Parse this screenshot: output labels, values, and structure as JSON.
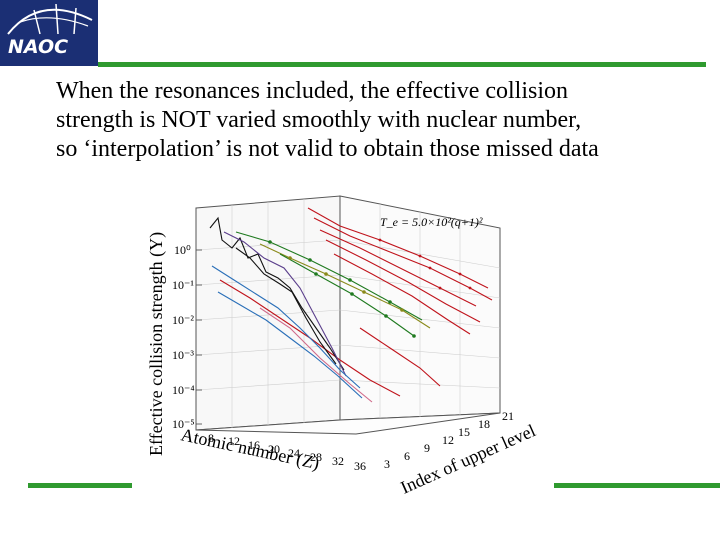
{
  "logo": {
    "text": "NAOC"
  },
  "caption": {
    "lines": [
      "When the resonances included, the effective collision",
      "strength is NOT varied smoothly with nuclear number,",
      "so ‘interpolation’ is not valid to obtain those missed data"
    ]
  },
  "figure": {
    "z_label": "Effective collision strength (Υ)",
    "x_label": "Atomic number (Z)",
    "y_label": "Index of upper level",
    "annotation": "T_e = 5.0×10²(q+1)²",
    "z_ticks": [
      "10⁰",
      "10⁻¹",
      "10⁻²",
      "10⁻³",
      "10⁻⁴",
      "10⁻⁵"
    ],
    "x_ticks": [
      "8",
      "12",
      "16",
      "20",
      "24",
      "28",
      "32",
      "36"
    ],
    "y_ticks": [
      "3",
      "6",
      "9",
      "12",
      "15",
      "18",
      "21"
    ]
  },
  "colors": {
    "logo_bg": "#1b2f74",
    "rule": "#2f9a2f",
    "curve_red": "#c0141c",
    "curve_black": "#111111",
    "curve_blue": "#2a6fb8",
    "curve_green": "#1f7a1f",
    "curve_olive": "#8a8a1a",
    "curve_purple": "#5b3f8c",
    "curve_pink": "#d06a8a"
  }
}
